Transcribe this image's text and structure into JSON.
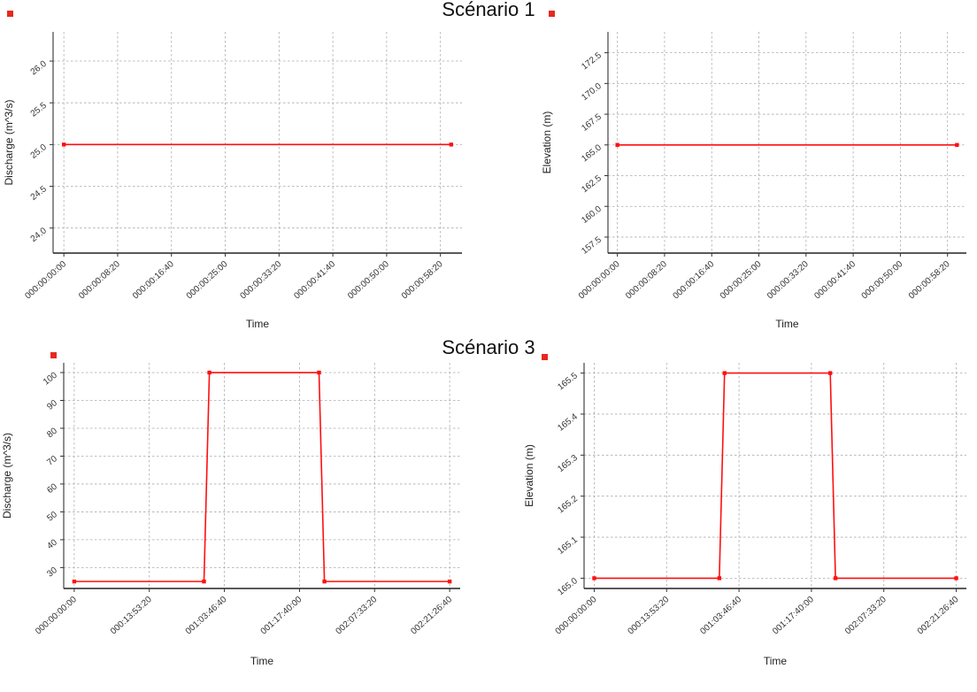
{
  "titles": [
    "Scénario 1",
    "Scénario 3"
  ],
  "accent_color": "#ff0000",
  "chart_data": [
    {
      "id": "scenario1-discharge",
      "type": "line",
      "group_title": "Scénario 1",
      "xlabel": "Time",
      "ylabel": "Discharge (m^3/s)",
      "grid": true,
      "legend": "none",
      "xlim": [
        -100,
        3700
      ],
      "ylim": [
        23.7,
        26.35
      ],
      "x_tick_values": [
        0,
        500,
        1000,
        1500,
        2000,
        2500,
        3000,
        3500
      ],
      "x_tick_labels": [
        "000:00:00:00",
        "000:00:08:20",
        "000:00:16:40",
        "000:00:25:00",
        "000:00:33:20",
        "000:00:41:40",
        "000:00:50:00",
        "000:00:58:20"
      ],
      "y_tick_values": [
        24.0,
        24.5,
        25.0,
        25.5,
        26.0
      ],
      "y_tick_labels": [
        "24.0",
        "24.5",
        "25.0",
        "25.5",
        "26.0"
      ],
      "series": [
        {
          "name": "Discharge",
          "color": "#ff0f0f",
          "x": [
            0,
            3600
          ],
          "y": [
            25.0,
            25.0
          ]
        }
      ]
    },
    {
      "id": "scenario1-elevation",
      "type": "line",
      "group_title": "Scénario 1",
      "xlabel": "Time",
      "ylabel": "Elevation (m)",
      "grid": true,
      "legend": "none",
      "xlim": [
        -100,
        3700
      ],
      "ylim": [
        156.2,
        174.2
      ],
      "x_tick_values": [
        0,
        500,
        1000,
        1500,
        2000,
        2500,
        3000,
        3500
      ],
      "x_tick_labels": [
        "000:00:00:00",
        "000:00:08:20",
        "000:00:16:40",
        "000:00:25:00",
        "000:00:33:20",
        "000:00:41:40",
        "000:00:50:00",
        "000:00:58:20"
      ],
      "y_tick_values": [
        157.5,
        160.0,
        162.5,
        165.0,
        167.5,
        170.0,
        172.5
      ],
      "y_tick_labels": [
        "157.5",
        "160.0",
        "162.5",
        "165.0",
        "167.5",
        "170.0",
        "172.5"
      ],
      "series": [
        {
          "name": "Elevation",
          "color": "#ff0f0f",
          "x": [
            0,
            3600
          ],
          "y": [
            165.0,
            165.0
          ]
        }
      ]
    },
    {
      "id": "scenario3-discharge",
      "type": "line",
      "group_title": "Scénario 3",
      "xlabel": "Time",
      "ylabel": "Discharge (m^3/s)",
      "grid": true,
      "legend": "none",
      "xlim": [
        -7000,
        257000
      ],
      "ylim": [
        22.5,
        103.5
      ],
      "x_tick_values": [
        0,
        50000,
        100000,
        150000,
        200000,
        250000
      ],
      "x_tick_labels": [
        "000:00:00:00",
        "000:13:53:20",
        "001:03:46:40",
        "001:17:40:00",
        "002:07:33:20",
        "002:21:26:40"
      ],
      "y_tick_values": [
        30,
        40,
        50,
        60,
        70,
        80,
        90,
        100
      ],
      "y_tick_labels": [
        "30",
        "40",
        "50",
        "60",
        "70",
        "80",
        "90",
        "100"
      ],
      "series": [
        {
          "name": "Discharge",
          "color": "#ff0f0f",
          "x": [
            0,
            86400,
            90000,
            163000,
            166600,
            250000
          ],
          "y": [
            25,
            25,
            100,
            100,
            25,
            25
          ]
        }
      ]
    },
    {
      "id": "scenario3-elevation",
      "type": "line",
      "group_title": "Scénario 3",
      "xlabel": "Time",
      "ylabel": "Elevation (m)",
      "grid": true,
      "legend": "none",
      "xlim": [
        -7000,
        257000
      ],
      "ylim": [
        164.975,
        165.525
      ],
      "x_tick_values": [
        0,
        50000,
        100000,
        150000,
        200000,
        250000
      ],
      "x_tick_labels": [
        "000:00:00:00",
        "000:13:53:20",
        "001:03:46:40",
        "001:17:40:00",
        "002:07:33:20",
        "002:21:26:40"
      ],
      "y_tick_values": [
        165.0,
        165.1,
        165.2,
        165.3,
        165.4,
        165.5
      ],
      "y_tick_labels": [
        "165.0",
        "165.1",
        "165.2",
        "165.3",
        "165.4",
        "165.5"
      ],
      "series": [
        {
          "name": "Elevation",
          "color": "#ff0f0f",
          "x": [
            0,
            86400,
            90000,
            163000,
            166600,
            250000
          ],
          "y": [
            165.0,
            165.0,
            165.5,
            165.5,
            165.0,
            165.0
          ]
        }
      ]
    }
  ]
}
